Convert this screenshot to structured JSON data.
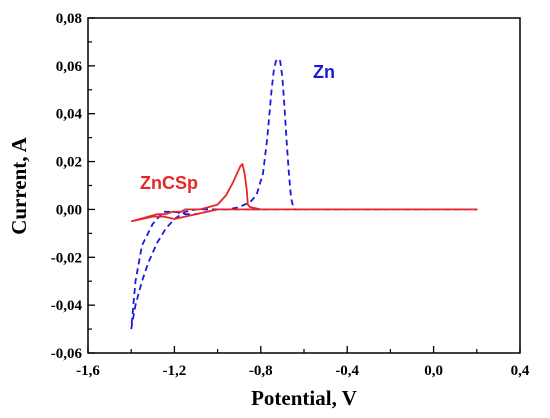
{
  "chart_data": {
    "type": "line",
    "title": "",
    "xlabel": "Potential, V",
    "ylabel": "Current, A",
    "xlim": [
      -1.6,
      0.4
    ],
    "ylim": [
      -0.06,
      0.08
    ],
    "x_ticks": [
      "-1,6",
      "-1,2",
      "-0,8",
      "-0,4",
      "0,0",
      "0,4"
    ],
    "y_ticks": [
      "-0,06",
      "-0,04",
      "-0,02",
      "0,00",
      "0,02",
      "0,04",
      "0,06",
      "0,08"
    ],
    "grid": false,
    "series": [
      {
        "name": "Zn",
        "color": "#1a1adb",
        "style": "dashed",
        "x": [
          -1.4,
          -1.38,
          -1.35,
          -1.32,
          -1.28,
          -1.24,
          -1.2,
          -1.15,
          -1.1,
          -1.05,
          -1.0,
          -0.95,
          -0.9,
          -0.85,
          -0.82,
          -0.79,
          -0.77,
          -0.75,
          -0.74,
          -0.73,
          -0.72,
          -0.71,
          -0.7,
          -0.69,
          -0.68,
          -0.67,
          -0.66,
          -0.65,
          -0.64,
          -0.6,
          -0.5,
          -0.3,
          0.0,
          0.2,
          0.0,
          -0.3,
          -0.6,
          -0.9,
          -1.0,
          -1.05,
          -1.1,
          -1.15,
          -1.2,
          -1.25,
          -1.3,
          -1.35,
          -1.38,
          -1.4
        ],
        "y": [
          -0.05,
          -0.04,
          -0.03,
          -0.022,
          -0.014,
          -0.008,
          -0.004,
          -0.001,
          0.0,
          0.0,
          0.0,
          0.0,
          0.001,
          0.003,
          0.006,
          0.015,
          0.03,
          0.05,
          0.058,
          0.062,
          0.063,
          0.062,
          0.055,
          0.042,
          0.028,
          0.015,
          0.005,
          0.001,
          0.0,
          0.0,
          0.0,
          0.0,
          0.0,
          0.0,
          0.0,
          0.0,
          0.0,
          0.0,
          0.0,
          -0.001,
          -0.002,
          -0.002,
          -0.001,
          -0.001,
          -0.006,
          -0.015,
          -0.03,
          -0.05
        ]
      },
      {
        "name": "ZnCSp",
        "color": "#e8262a",
        "style": "solid",
        "x": [
          -1.4,
          -1.36,
          -1.32,
          -1.28,
          -1.24,
          -1.21,
          -1.19,
          -1.17,
          -1.15,
          -1.12,
          -1.08,
          -1.04,
          -1.0,
          -0.96,
          -0.93,
          -0.91,
          -0.895,
          -0.885,
          -0.875,
          -0.865,
          -0.86,
          -0.85,
          -0.8,
          -0.6,
          -0.3,
          0.0,
          0.2,
          0.0,
          -0.3,
          -0.6,
          -0.85,
          -0.9,
          -1.0,
          -1.05,
          -1.1,
          -1.15,
          -1.2,
          -1.25,
          -1.3,
          -1.35,
          -1.4
        ],
        "y": [
          -0.005,
          -0.004,
          -0.003,
          -0.002,
          -0.002,
          -0.001,
          -0.001,
          -0.001,
          0.0,
          0.0,
          0.0,
          0.001,
          0.002,
          0.006,
          0.011,
          0.015,
          0.018,
          0.019,
          0.015,
          0.008,
          0.002,
          0.001,
          0.0,
          0.0,
          0.0,
          0.0,
          0.0,
          0.0,
          0.0,
          0.0,
          0.0,
          0.0,
          0.0,
          -0.001,
          -0.002,
          -0.003,
          -0.004,
          -0.003,
          -0.003,
          -0.004,
          -0.005
        ]
      }
    ]
  }
}
